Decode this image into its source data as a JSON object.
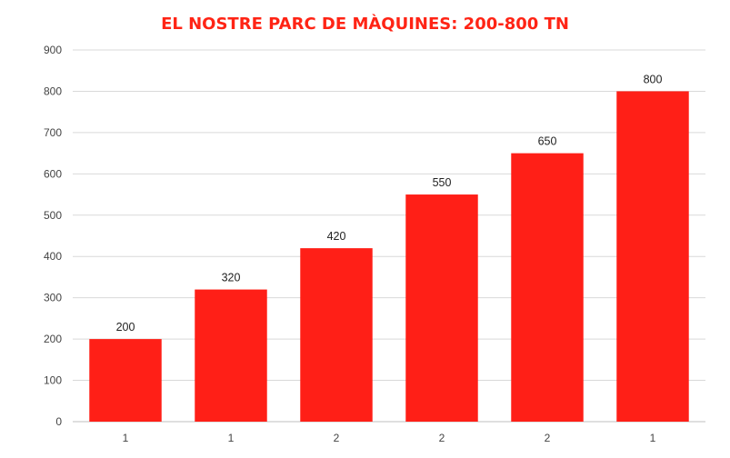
{
  "chart_data": {
    "type": "bar",
    "title": "EL NOSTRE PARC DE MÀQUINES: 200-800 TN",
    "categories": [
      "1",
      "1",
      "2",
      "2",
      "2",
      "1"
    ],
    "values": [
      200,
      320,
      420,
      550,
      650,
      800
    ],
    "data_labels": [
      "200",
      "320",
      "420",
      "550",
      "650",
      "800"
    ],
    "xlabel": "",
    "ylabel": "",
    "ylim": [
      0,
      900
    ],
    "yticks": [
      0,
      100,
      200,
      300,
      400,
      500,
      600,
      700,
      800,
      900
    ],
    "grid": true,
    "legend": "none",
    "colors": {
      "bar": "#ff1f17",
      "title": "#ff2415",
      "grid": "#d9d9d9",
      "axis_text": "#444444"
    }
  }
}
